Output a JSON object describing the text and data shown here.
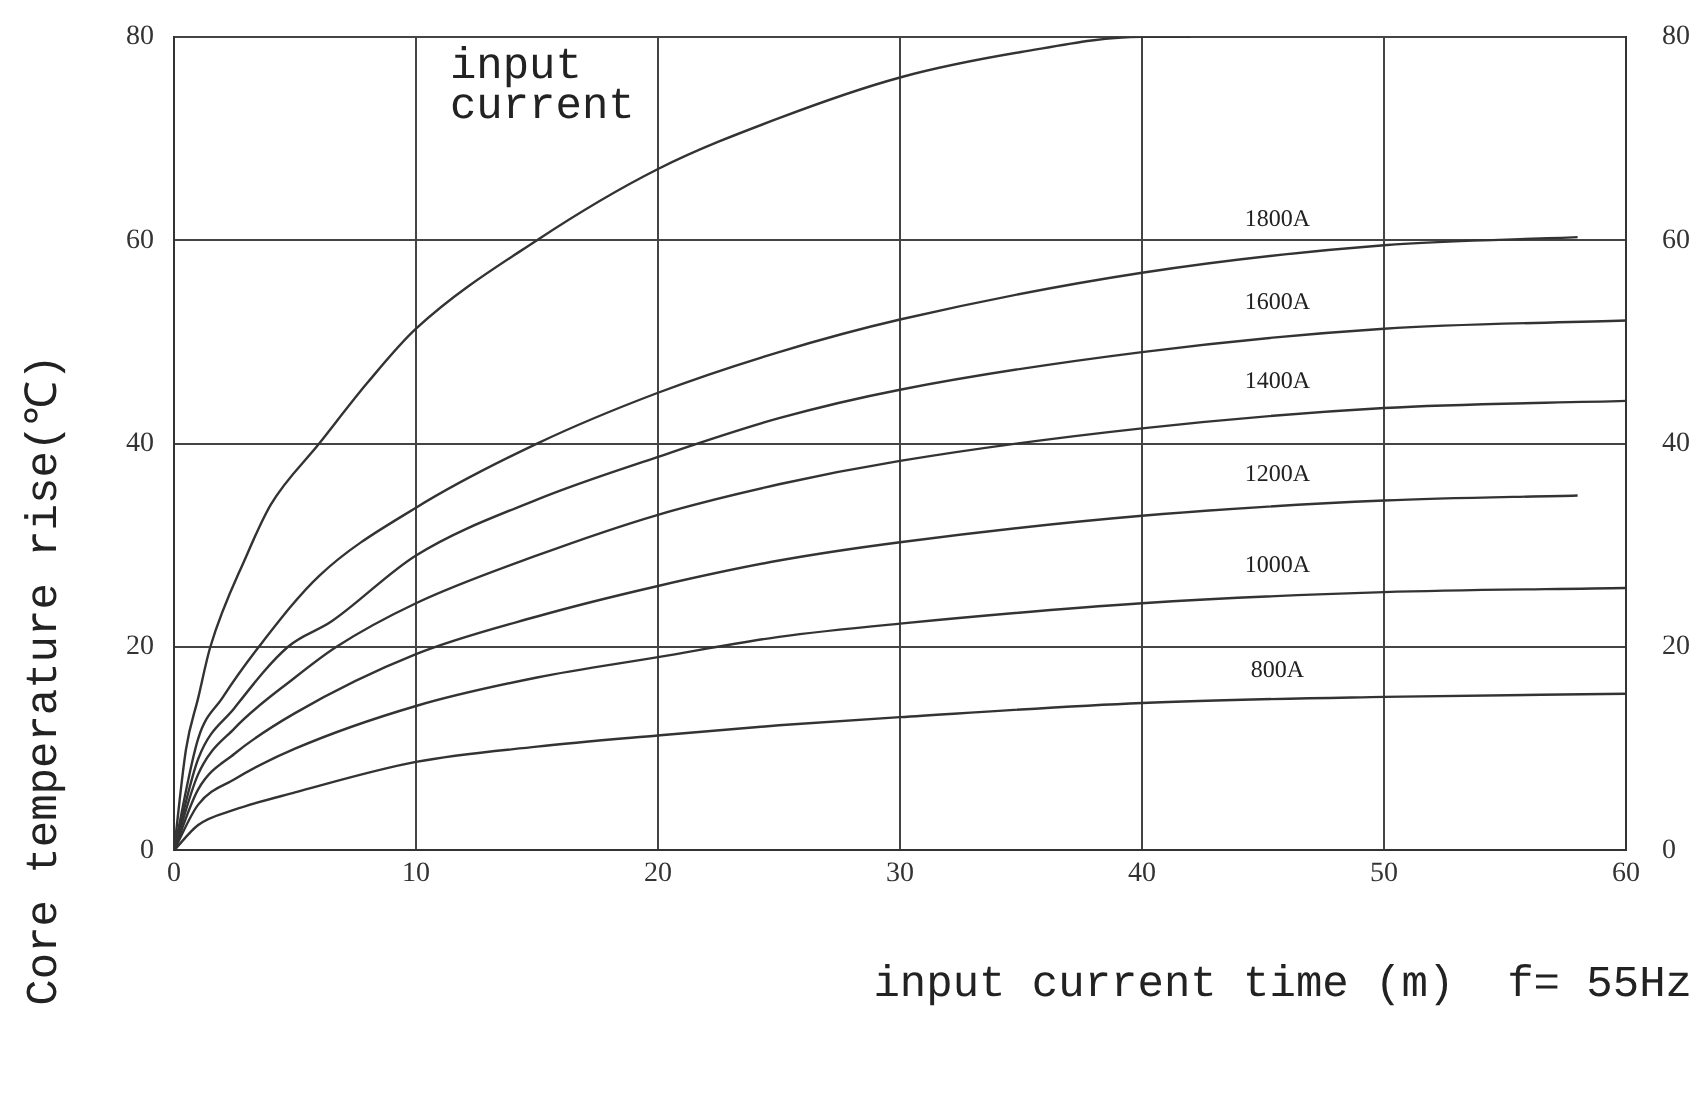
{
  "chart_data": {
    "type": "line",
    "xlabel": "input current time (m)  f= 55Hz",
    "ylabel": "Core temperature rise(℃)",
    "annotations": [
      "input current"
    ],
    "xlim": [
      0,
      60
    ],
    "xticks": [
      0,
      10,
      20,
      30,
      40,
      50,
      60
    ],
    "ylim": [
      0,
      80
    ],
    "yticks": [
      0,
      20,
      40,
      60,
      80
    ],
    "y2lim": [
      0,
      80
    ],
    "y2ticks": [
      0,
      20,
      40,
      60,
      80
    ],
    "grid": true,
    "legend": false,
    "marker": "none",
    "line_style": "solid",
    "series": [
      {
        "color": "#333333",
        "x": [
          0,
          0.5,
          1,
          1.5,
          3,
          4,
          6,
          8,
          10,
          15,
          20,
          25,
          30,
          35,
          40,
          42
        ],
        "values": [
          0,
          10,
          15,
          20,
          29,
          34,
          40,
          46,
          51.3,
          60,
          67,
          72,
          76,
          78.5,
          80,
          80
        ]
      },
      {
        "name": "1800A",
        "color": "#333333",
        "x": [
          0,
          1,
          2,
          3.5,
          6,
          10,
          15,
          20,
          25,
          30,
          40,
          50,
          58
        ],
        "values": [
          0,
          11,
          15,
          20,
          27,
          33.7,
          40,
          45,
          49,
          52.2,
          56.8,
          59.5,
          60.3
        ]
      },
      {
        "name": "1600A",
        "color": "#333333",
        "x": [
          0,
          1,
          2.5,
          4.7,
          6.5,
          10,
          15,
          20,
          25,
          30,
          40,
          50,
          60
        ],
        "values": [
          0,
          9,
          14,
          20,
          22.5,
          29,
          34.5,
          38.7,
          42.5,
          45.3,
          49,
          51.3,
          52.1
        ]
      },
      {
        "name": "1400A",
        "color": "#333333",
        "x": [
          0,
          1,
          2.5,
          5,
          6.7,
          10,
          15,
          20,
          25,
          30,
          40,
          50,
          60
        ],
        "values": [
          0,
          7.5,
          12,
          17,
          20,
          24.3,
          29,
          33,
          36,
          38.3,
          41.5,
          43.5,
          44.2
        ]
      },
      {
        "name": "1200A",
        "color": "#333333",
        "x": [
          0,
          1,
          2.5,
          5,
          10,
          15,
          20,
          25,
          30,
          40,
          50,
          58
        ],
        "values": [
          0,
          6,
          9.5,
          13.5,
          19.3,
          23,
          26,
          28.5,
          30.3,
          32.9,
          34.4,
          34.9
        ]
      },
      {
        "name": "1000A",
        "color": "#333333",
        "x": [
          0,
          1,
          2.5,
          5,
          10,
          15,
          20,
          25,
          30,
          40,
          50,
          60
        ],
        "values": [
          0,
          4.5,
          7,
          10,
          14.2,
          17,
          19,
          21,
          22.3,
          24.3,
          25.4,
          25.8
        ]
      },
      {
        "name": "800A",
        "color": "#333333",
        "x": [
          0,
          1,
          2.5,
          5,
          10,
          15,
          20,
          25,
          30,
          40,
          50,
          60
        ],
        "values": [
          0,
          2.5,
          4,
          5.7,
          8.7,
          10.2,
          11.3,
          12.3,
          13.1,
          14.5,
          15.1,
          15.4
        ]
      }
    ]
  }
}
